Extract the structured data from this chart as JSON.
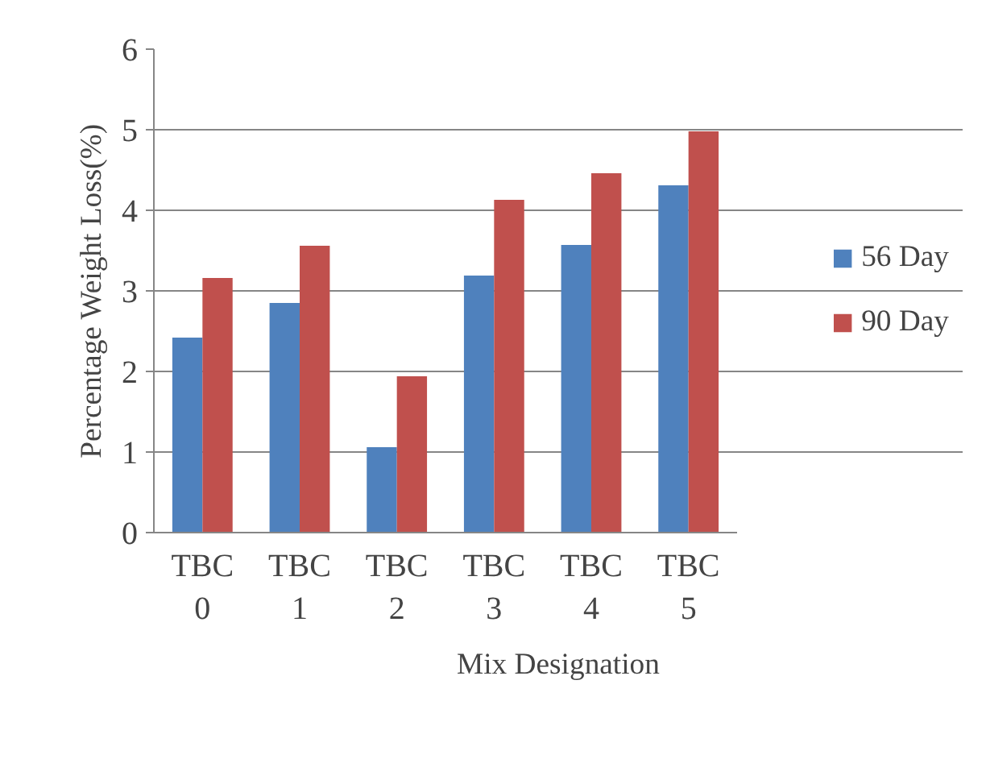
{
  "chart_data": {
    "type": "bar",
    "xlabel": "Mix Designation",
    "ylabel": "Percentage Weight Loss(%)",
    "categories": [
      "TBC 0",
      "TBC 1",
      "TBC 2",
      "TBC 3",
      "TBC 4",
      "TBC 5"
    ],
    "series": [
      {
        "name": "56 Day",
        "color": "#4f81bd",
        "values": [
          2.42,
          2.85,
          1.06,
          3.19,
          3.57,
          4.31
        ]
      },
      {
        "name": "90 Day",
        "color": "#c0504d",
        "values": [
          3.16,
          3.56,
          1.94,
          4.13,
          4.46,
          4.98
        ]
      }
    ],
    "ylim": [
      0,
      6
    ],
    "yticks": [
      0,
      1,
      2,
      3,
      4,
      5,
      6
    ],
    "grid": "y",
    "legend": "right"
  }
}
